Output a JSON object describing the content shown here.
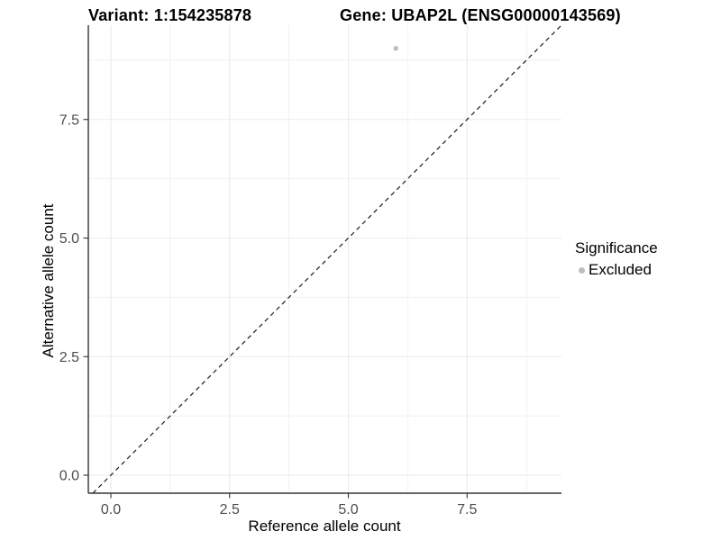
{
  "titles": {
    "left": "Variant: 1:154235878",
    "right": "Gene: UBAP2L (ENSG00000143569)"
  },
  "chart_data": {
    "type": "scatter",
    "xlabel": "Reference allele count",
    "ylabel": "Alternative allele count",
    "xlim": [
      -0.47,
      9.49
    ],
    "ylim": [
      -0.38,
      9.49
    ],
    "x_ticks": [
      "0.0",
      "2.5",
      "5.0",
      "7.5"
    ],
    "x_tick_values": [
      0,
      2.5,
      5,
      7.5
    ],
    "y_ticks": [
      "0.0",
      "2.5",
      "5.0",
      "7.5"
    ],
    "y_tick_values": [
      0,
      2.5,
      5,
      7.5
    ],
    "x_minor_tick_values": [
      1.25,
      3.75,
      6.25,
      8.75
    ],
    "y_minor_tick_values": [
      1.25,
      3.75,
      6.25,
      8.75
    ],
    "grid": true,
    "points": [
      {
        "x": 6,
        "y": 9,
        "series": "Excluded"
      }
    ],
    "abline": {
      "slope": 1,
      "intercept": 0,
      "linetype": "dashed",
      "color": "#1a1a1a"
    },
    "legend": {
      "title": "Significance",
      "position": "right",
      "items": [
        {
          "label": "Excluded",
          "color": "#bdbdbd"
        }
      ]
    },
    "colors": {
      "point": "#bdbdbd",
      "grid_major": "#ebebeb",
      "grid_minor": "#f1f1f1",
      "axis_line": "#333333",
      "tick_mark": "#333333",
      "tick_label": "#4d4d4d"
    }
  }
}
